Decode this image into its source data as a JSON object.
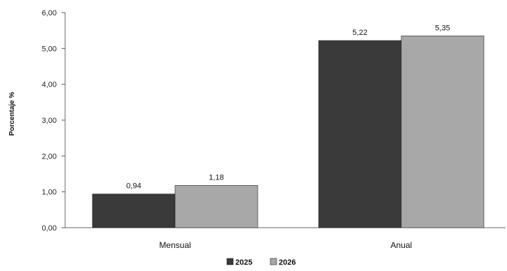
{
  "chart_data": {
    "type": "bar",
    "title": "",
    "xlabel": "",
    "ylabel": "Porcentaje %",
    "categories": [
      "Mensual",
      "Anual"
    ],
    "series": [
      {
        "name": "2025",
        "values": [
          0.94,
          5.22
        ],
        "labels": [
          "0,94",
          "5,22"
        ],
        "color": "#3a3a3a"
      },
      {
        "name": "2026",
        "values": [
          1.18,
          5.35
        ],
        "labels": [
          "1,18",
          "5,35"
        ],
        "color": "#a8a8a8"
      }
    ],
    "ylim": [
      0,
      6
    ],
    "yticks": [
      0,
      1,
      2,
      3,
      4,
      5,
      6
    ],
    "ytick_labels": [
      "0,00",
      "1,00",
      "2,00",
      "3,00",
      "4,00",
      "5,00",
      "6,00"
    ],
    "grid": false,
    "legend_position": "bottom-center"
  }
}
